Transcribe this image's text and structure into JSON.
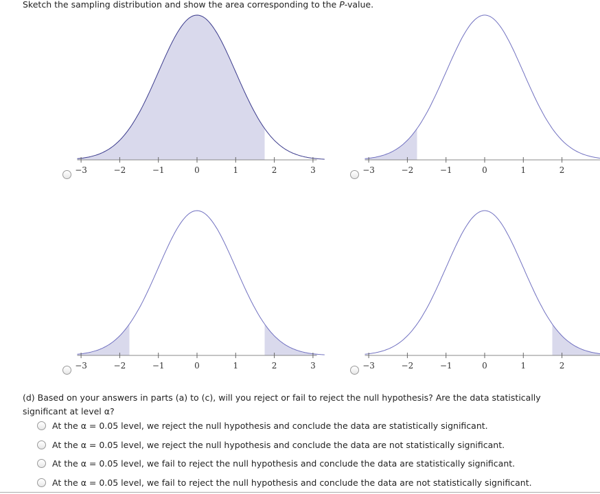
{
  "prompt": {
    "before": "Sketch the sampling distribution and show the area corresponding to the ",
    "italic": "P",
    "after": "-value."
  },
  "plots": [
    {
      "xlim": [
        -3.1,
        3.1
      ],
      "xticks": [
        {
          "value": -3,
          "label": "−3"
        },
        {
          "value": -2,
          "label": "−2"
        },
        {
          "value": -1,
          "label": "−1"
        },
        0,
        1,
        2,
        3
      ],
      "shaded": [
        [
          -3.1,
          1.75
        ]
      ]
    },
    {
      "xlim": [
        -3.1,
        3.1
      ],
      "xticks": [
        {
          "value": -3,
          "label": "−3"
        },
        {
          "value": -2,
          "label": "−2"
        },
        {
          "value": -1,
          "label": "−1"
        },
        0,
        1,
        2
      ],
      "shaded": [
        [
          -3.1,
          -1.75
        ]
      ]
    },
    {
      "xlim": [
        -3.1,
        3.1
      ],
      "xticks": [
        {
          "value": -3,
          "label": "−3"
        },
        {
          "value": -2,
          "label": "−2"
        },
        {
          "value": -1,
          "label": "−1"
        },
        0,
        1,
        2,
        3
      ],
      "shaded": [
        [
          -3.1,
          -1.75
        ],
        [
          1.75,
          3.1
        ]
      ]
    },
    {
      "xlim": [
        -3.1,
        3.1
      ],
      "xticks": [
        {
          "value": -3,
          "label": "−3"
        },
        {
          "value": -2,
          "label": "−2"
        },
        {
          "value": -1,
          "label": "−1"
        },
        0,
        1,
        2
      ],
      "shaded": [
        [
          1.75,
          3.1
        ]
      ]
    }
  ],
  "question": "(d) Based on your answers in parts (a) to (c), will you reject or fail to reject the null hypothesis? Are the data statistically significant at level α?",
  "options": [
    "At the α = 0.05 level, we reject the null hypothesis and conclude the data are statistically significant.",
    "At the α = 0.05 level, we reject the null hypothesis and conclude the data are not statistically significant.",
    "At the α = 0.05 level, we fail to reject the null hypothesis and conclude the data are statistically significant.",
    "At the α = 0.05 level, we fail to reject the null hypothesis and conclude the data are not statistically significant."
  ]
}
